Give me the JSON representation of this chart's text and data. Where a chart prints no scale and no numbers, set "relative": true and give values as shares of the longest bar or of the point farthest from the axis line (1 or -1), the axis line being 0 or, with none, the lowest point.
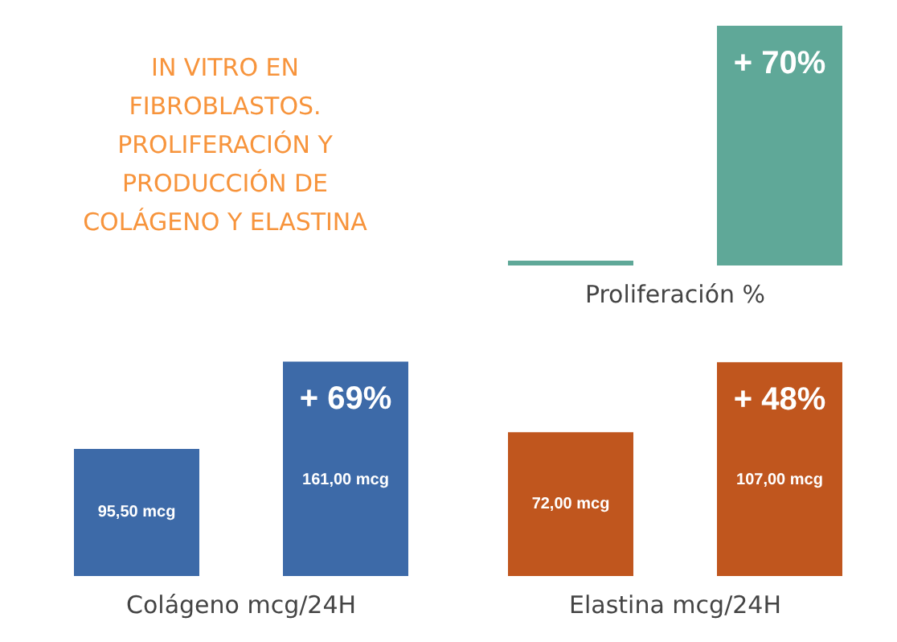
{
  "chart_data": [
    {
      "type": "other",
      "title": "IN VITRO EN\nFIBROBLASTOS.\nPROLIFERACIÓN Y\nPRODUCCIÓN DE\nCOLÁGENO Y ELASTINA"
    },
    {
      "type": "bar",
      "relative": true,
      "categories": [
        null,
        null
      ],
      "values": [
        0.02,
        1
      ],
      "color": "#5fa898",
      "xlabel": "Proliferación %",
      "annotations": [
        "+ 70%"
      ]
    },
    {
      "type": "bar",
      "categories": [
        null,
        null
      ],
      "values": [
        95.5,
        161
      ],
      "value_labels": [
        "95,50 mcg",
        "161,00 mcg"
      ],
      "color": "#3d6aa8",
      "xlabel": "Colágeno mcg/24H",
      "annotations": [
        "+ 69%"
      ]
    },
    {
      "type": "bar",
      "categories": [
        null,
        null
      ],
      "values": [
        72,
        107
      ],
      "value_labels": [
        "72,00 mcg",
        "107,00 mcg"
      ],
      "color": "#c0561e",
      "xlabel": "Elastina mcg/24H",
      "annotations": [
        "+ 48%"
      ]
    }
  ]
}
